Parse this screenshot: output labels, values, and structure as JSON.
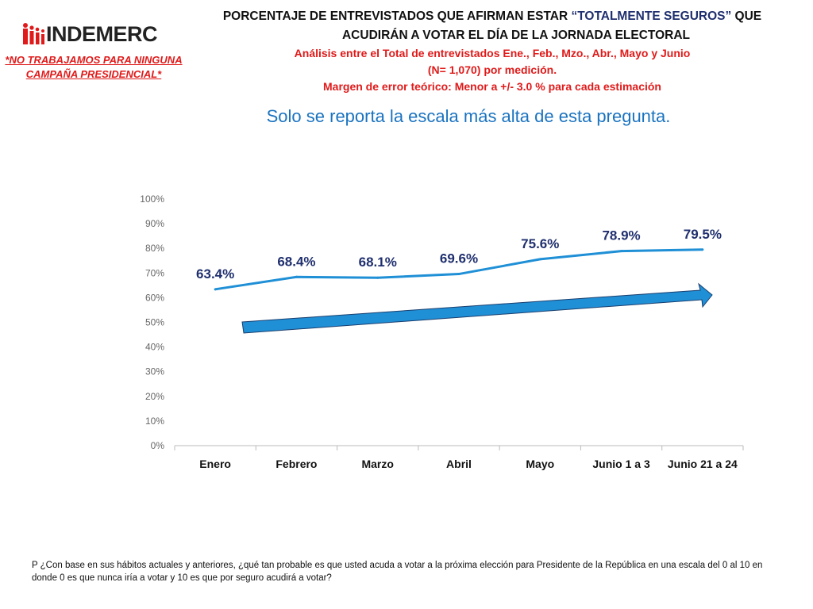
{
  "header": {
    "logo": "INDEMERC",
    "disclaimer_line1": "*NO TRABAJAMOS PARA NINGUNA",
    "disclaimer_line2": "CAMPAÑA PRESIDENCIAL*",
    "title_part1": "PORCENTAJE DE ENTREVISTADOS QUE AFIRMAN ESTAR ",
    "title_highlight": "“TOTALMENTE SEGUROS”",
    "title_part2": " QUE",
    "title_line2": "ACUDIRÁN A VOTAR EL DÍA DE LA JORNADA ELECTORAL",
    "analysis": "Análisis entre el Total de entrevistados Ene., Feb., Mzo., Abr., Mayo y Junio",
    "sample": "(N= 1,070) por medición.",
    "margin": "Margen de error teórico: Menor a +/- 3.0 % para cada estimación",
    "subtitle": "Solo se reporta la escala más alta de esta pregunta."
  },
  "chart_data": {
    "type": "line",
    "categories": [
      "Enero",
      "Febrero",
      "Marzo",
      "Abril",
      "Mayo",
      "Junio 1 a 3",
      "Junio 21 a 24"
    ],
    "values": [
      63.4,
      68.4,
      68.1,
      69.6,
      75.6,
      78.9,
      79.5
    ],
    "labels": [
      "63.4%",
      "68.4%",
      "68.1%",
      "69.6%",
      "75.6%",
      "78.9%",
      "79.5%"
    ],
    "yticks": [
      "0%",
      "10%",
      "20%",
      "30%",
      "40%",
      "50%",
      "60%",
      "70%",
      "80%",
      "90%",
      "100%"
    ],
    "ylim": [
      0,
      100
    ],
    "grid": false,
    "annotation": "upward trend arrow",
    "colors": {
      "line": "#1f8fd6",
      "label": "#1f2f6e",
      "arrow": "#1f8fd6"
    }
  },
  "footer": {
    "question": "P  ¿Con base en sus hábitos actuales y anteriores, ¿qué tan probable es que usted acuda a votar a la próxima elección para Presidente de la República en una escala del 0 al 10 en donde 0 es que nunca iría a votar y 10 es que por seguro acudirá a votar?"
  }
}
